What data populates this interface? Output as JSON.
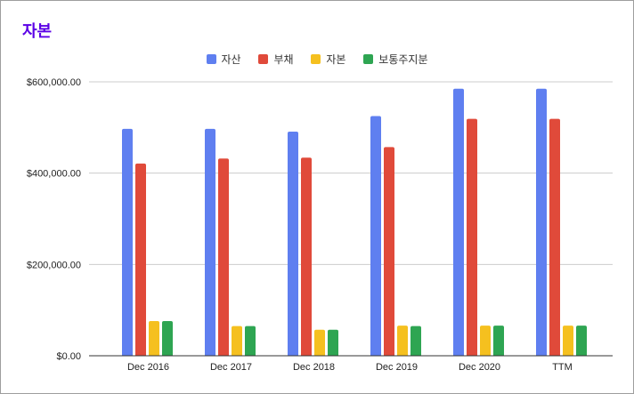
{
  "chart_data": {
    "type": "bar",
    "title": "자본",
    "categories": [
      "Dec 2016",
      "Dec 2017",
      "Dec 2018",
      "Dec 2019",
      "Dec 2020",
      "TTM"
    ],
    "series": [
      {
        "name": "자산",
        "color": "#5f7ff0",
        "values": [
          497000,
          497000,
          491000,
          525000,
          585000,
          585000
        ]
      },
      {
        "name": "부채",
        "color": "#e04a3a",
        "values": [
          421000,
          432000,
          434000,
          457000,
          519000,
          519000
        ]
      },
      {
        "name": "자본",
        "color": "#f5c01f",
        "values": [
          76000,
          65000,
          57000,
          66000,
          66000,
          66000
        ]
      },
      {
        "name": "보통주지분",
        "color": "#2ea552",
        "values": [
          76000,
          65000,
          57000,
          65000,
          66000,
          66000
        ]
      }
    ],
    "ylim": [
      0,
      600000
    ],
    "yticks": [
      "$0.00",
      "$200,000.00",
      "$400,000.00",
      "$600,000.00"
    ],
    "ytick_values": [
      0,
      200000,
      400000,
      600000
    ],
    "grid": true,
    "legend_position": "top"
  }
}
